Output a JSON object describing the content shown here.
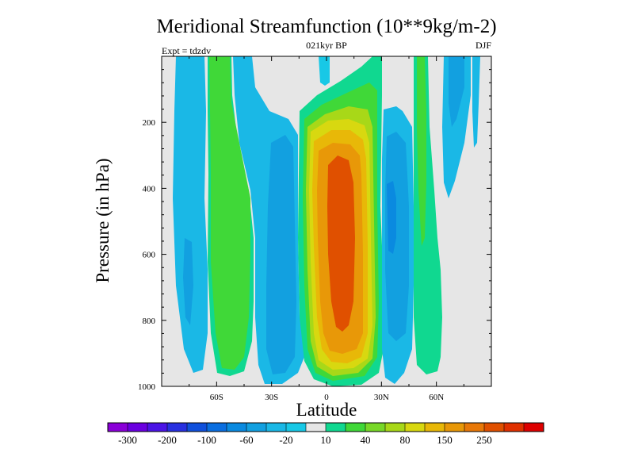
{
  "chart_data": {
    "type": "filled-contour",
    "title": "Meridional Streamfunction (10**9kg/m-2)",
    "subtitle_center": "021kyr BP",
    "subtitle_left": "Expt = tdzdv",
    "subtitle_right": "DJF",
    "xlabel": "Latitude",
    "ylabel": "Pressure (in hPa)",
    "xlim": [
      -90,
      90
    ],
    "ylim": [
      1000,
      0
    ],
    "x_ticks": [
      {
        "value": -60,
        "label": "60S"
      },
      {
        "value": -30,
        "label": "30S"
      },
      {
        "value": 0,
        "label": "0"
      },
      {
        "value": 30,
        "label": "30N"
      },
      {
        "value": 60,
        "label": "60N"
      }
    ],
    "y_ticks": [
      {
        "value": 200,
        "label": "200"
      },
      {
        "value": 400,
        "label": "400"
      },
      {
        "value": 600,
        "label": "600"
      },
      {
        "value": 800,
        "label": "800"
      },
      {
        "value": 1000,
        "label": "1000"
      }
    ],
    "colorbar": {
      "colors": [
        "#8a00d8",
        "#6a00e0",
        "#4b14e6",
        "#2830e0",
        "#1050dc",
        "#0a6ee0",
        "#0a8ae0",
        "#12a0e0",
        "#1ab8e6",
        "#18c8e6",
        "#e6e6e6",
        "#10d890",
        "#40d838",
        "#78d828",
        "#a8d818",
        "#d8d810",
        "#e8b808",
        "#e89808",
        "#e87808",
        "#e05000",
        "#e03000",
        "#dd0000"
      ],
      "labels": [
        "-300",
        "-200",
        "-100",
        "-60",
        "-20",
        "10",
        "40",
        "80",
        "150",
        "250"
      ]
    },
    "features": [
      {
        "name": "northern-hadley-cell-max",
        "lat_center": 8,
        "pressure_top": 300,
        "pressure_bottom": 830,
        "value_class": 250
      },
      {
        "name": "southern-ferrel-cell",
        "lat_center": -55,
        "value_class": 40
      },
      {
        "name": "northern-ferrel-cell",
        "lat_center": 36,
        "value_class": -60
      }
    ]
  }
}
